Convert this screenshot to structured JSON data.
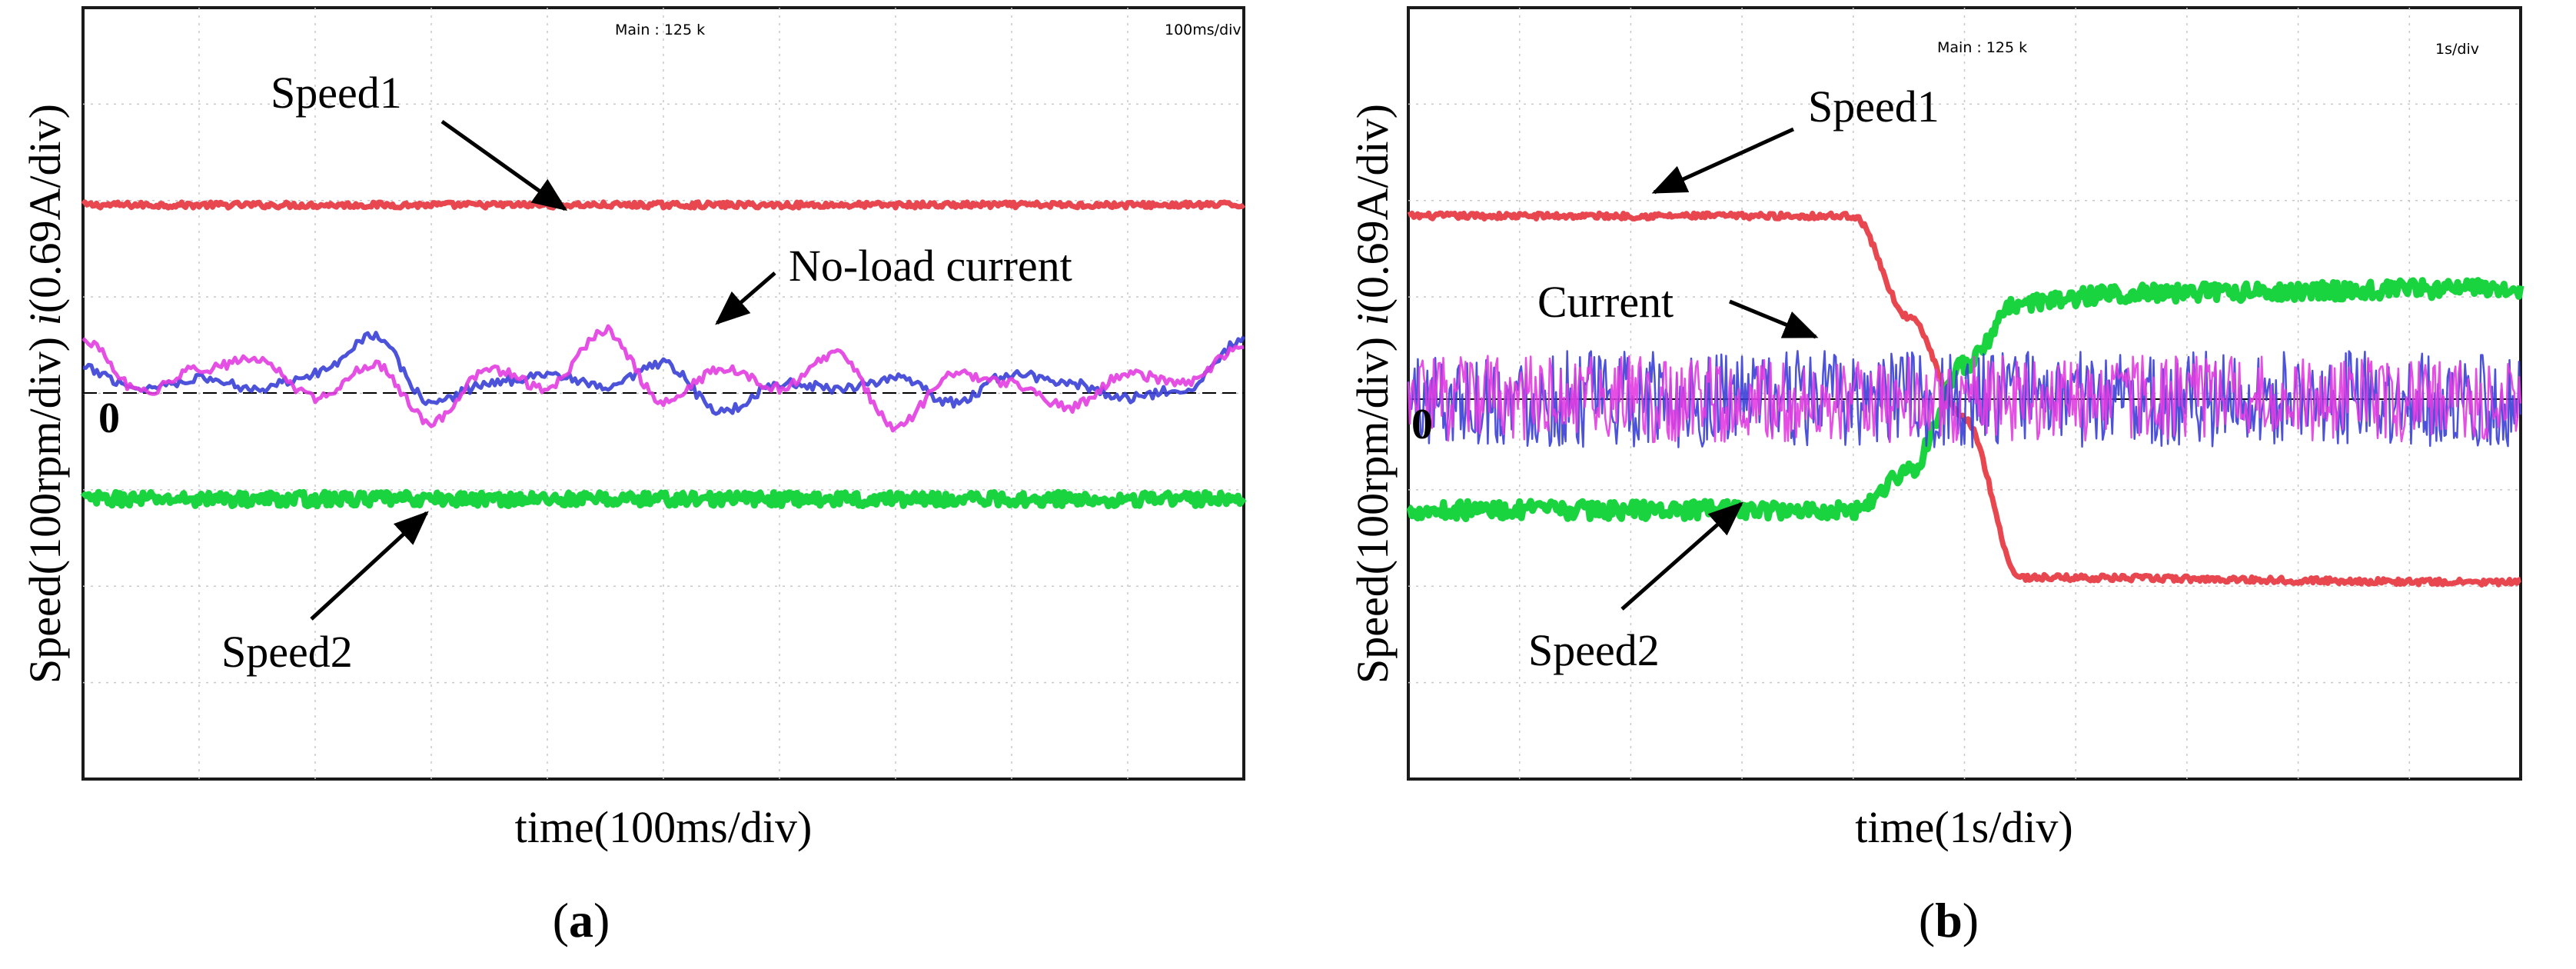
{
  "page": {
    "figure": "oscilloscope-comparison"
  },
  "colors": {
    "speed1": "#e8474f",
    "speed2": "#19d43f",
    "current_a": "#3a3fd6",
    "current_b": "#e23ce0",
    "grid": "#c8c8c8",
    "frame": "#1a1a1a",
    "arrow": "#000000"
  },
  "chart_data": [
    {
      "panel_label": "(a)",
      "panel_letter": "a",
      "type": "line",
      "header_left": "Main : 125 k",
      "header_right": "100ms/div",
      "xlabel": "time(100ms/div)",
      "ylabel_prefix": "Speed(100rpm/div) ",
      "ylabel_italic": "i",
      "ylabel_suffix": "(0.69A/div)",
      "zero_label": "0",
      "divisions": {
        "x": 10,
        "y": 8
      },
      "xlim": [
        0,
        10
      ],
      "ylim": [
        -4,
        4
      ],
      "annotations": [
        {
          "text": "Speed1",
          "target": "speed1"
        },
        {
          "text": "No-load current",
          "target": "current"
        },
        {
          "text": "Speed2",
          "target": "speed2"
        }
      ],
      "series": [
        {
          "name": "Speed1",
          "kind": "speed",
          "x": [
            0,
            10
          ],
          "values": [
            1.95,
            1.95
          ],
          "noise": 0.03
        },
        {
          "name": "Speed2",
          "kind": "speed",
          "x": [
            0,
            10
          ],
          "values": [
            -1.1,
            -1.1
          ],
          "noise": 0.07
        },
        {
          "name": "Current phase A",
          "kind": "current",
          "x": [
            0,
            0.5,
            1,
            1.5,
            2,
            2.5,
            3,
            3.5,
            4,
            4.5,
            5,
            5.5,
            6,
            6.5,
            7,
            7.5,
            8,
            8.5,
            9,
            9.5,
            10
          ],
          "values": [
            0.25,
            0.05,
            0.15,
            0.05,
            0.2,
            0.6,
            -0.1,
            0.1,
            0.2,
            0.05,
            0.3,
            -0.2,
            0.1,
            0.05,
            0.15,
            -0.1,
            0.2,
            0.1,
            -0.05,
            0.05,
            0.55
          ],
          "noise": 0.05
        },
        {
          "name": "Current phase B",
          "kind": "current",
          "x": [
            0,
            0.5,
            1,
            1.5,
            2,
            2.5,
            3,
            3.5,
            4,
            4.5,
            5,
            5.5,
            6,
            6.5,
            7,
            7.5,
            8,
            8.5,
            9,
            9.5,
            10
          ],
          "values": [
            0.55,
            0.0,
            0.25,
            0.35,
            -0.05,
            0.3,
            -0.3,
            0.25,
            0.05,
            0.65,
            -0.1,
            0.25,
            0.05,
            0.4,
            -0.35,
            0.2,
            0.1,
            -0.15,
            0.2,
            0.1,
            0.5
          ],
          "noise": 0.05
        }
      ]
    },
    {
      "panel_label": "(b)",
      "panel_letter": "b",
      "type": "line",
      "header_left": "Main : 125 k",
      "header_right": "1s/div",
      "xlabel": "time(1s/div)",
      "ylabel_prefix": "Speed(100rpm/div) ",
      "ylabel_italic": "i",
      "ylabel_suffix": "(0.69A/div)",
      "zero_label": "0",
      "divisions": {
        "x": 10,
        "y": 8
      },
      "xlim": [
        0,
        10
      ],
      "ylim": [
        -4,
        4
      ],
      "annotations": [
        {
          "text": "Speed1",
          "target": "speed1"
        },
        {
          "text": "Current",
          "target": "current"
        },
        {
          "text": "Speed2",
          "target": "speed2"
        }
      ],
      "series": [
        {
          "name": "Speed1",
          "kind": "speed",
          "x": [
            0,
            4.0,
            4.5,
            5.0,
            5.5,
            10
          ],
          "values": [
            1.9,
            1.9,
            0.85,
            -0.2,
            -1.85,
            -1.9
          ],
          "noise": 0.03
        },
        {
          "name": "Speed2",
          "kind": "speed",
          "x": [
            0,
            4.0,
            4.5,
            5.0,
            5.5,
            6.5,
            10
          ],
          "values": [
            -1.15,
            -1.15,
            -0.75,
            0.35,
            1.0,
            1.1,
            1.15
          ],
          "noise": 0.09
        },
        {
          "name": "Current phase A",
          "kind": "current",
          "x": [
            0,
            10
          ],
          "values": [
            0,
            0
          ],
          "noise": 0.5
        },
        {
          "name": "Current phase B",
          "kind": "current",
          "x": [
            0,
            10
          ],
          "values": [
            0,
            0
          ],
          "noise": 0.45
        }
      ]
    }
  ]
}
